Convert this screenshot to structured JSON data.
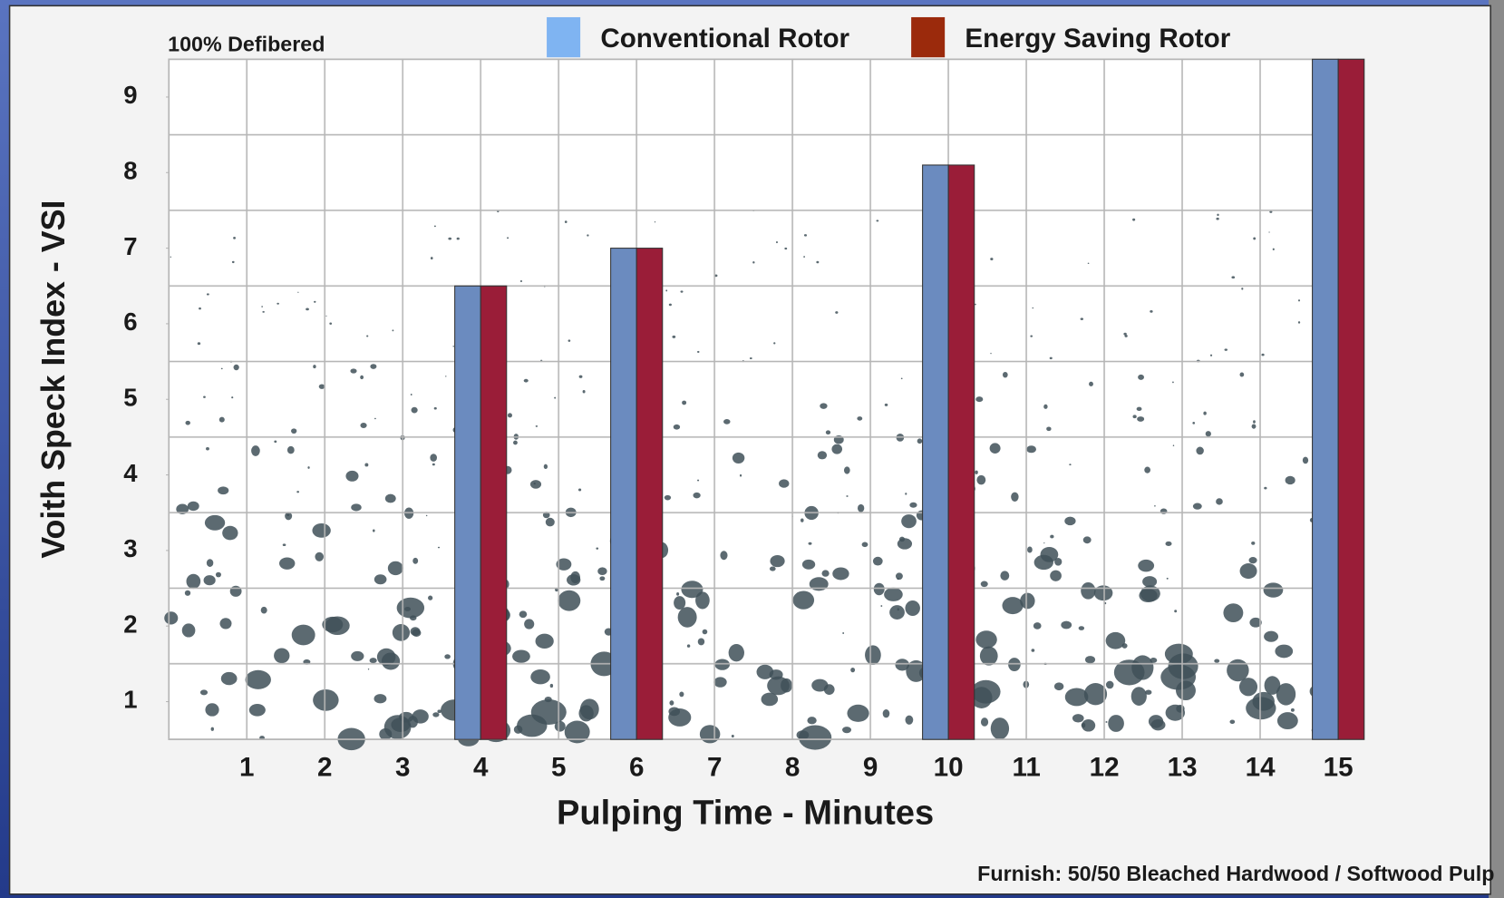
{
  "chart_data": {
    "type": "bar",
    "annotation": "100%  Defibered",
    "x_label": "Pulping Time - Minutes",
    "y_label": "Voith Speck Index - VSI",
    "footnote": "Furnish: 50/50 Bleached Hardwood / Softwood Pulp",
    "x": [
      1,
      2,
      3,
      4,
      5,
      6,
      7,
      8,
      9,
      10,
      11,
      12,
      13,
      14,
      15
    ],
    "xlim": [
      0,
      15.33
    ],
    "ylim": [
      0.5,
      9.5
    ],
    "yticks": [
      1,
      2,
      3,
      4,
      5,
      6,
      7,
      8,
      9
    ],
    "series": [
      {
        "name": "Conventional Rotor",
        "color": "#6b8bbf",
        "legend_color": "#7fb4f2",
        "values": [
          null,
          null,
          null,
          6.5,
          null,
          7.0,
          null,
          null,
          null,
          8.1,
          null,
          null,
          null,
          null,
          9.5
        ]
      },
      {
        "name": "Energy Saving Rotor",
        "color": "#9a1d38",
        "legend_color": "#9b2a0c",
        "values": [
          null,
          null,
          null,
          6.5,
          null,
          7.0,
          null,
          null,
          null,
          8.1,
          null,
          null,
          null,
          null,
          9.5
        ]
      }
    ]
  }
}
